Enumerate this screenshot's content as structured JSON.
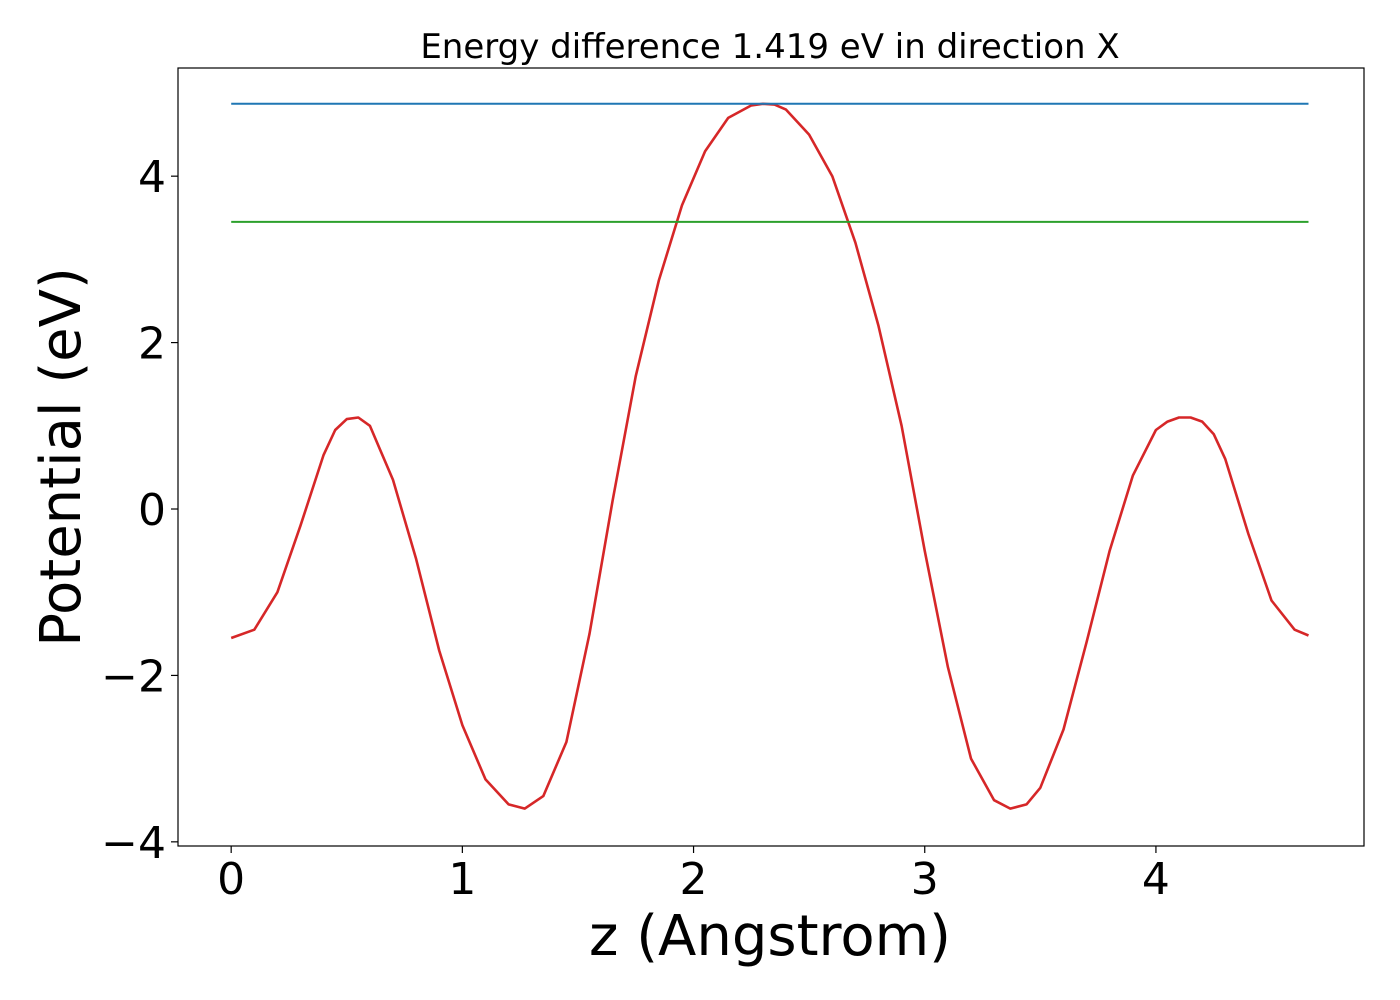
{
  "chart_data": {
    "type": "line",
    "title": "Energy difference 1.419 eV in direction X",
    "xlabel": "z (Angstrom)",
    "ylabel": "Potential (eV)",
    "xlim": [
      -0.23,
      4.9
    ],
    "ylim": [
      -4.05,
      5.3
    ],
    "grid": false,
    "legend": "none",
    "xticks": [
      {
        "value": 0,
        "label": "0"
      },
      {
        "value": 1,
        "label": "1"
      },
      {
        "value": 2,
        "label": "2"
      },
      {
        "value": 3,
        "label": "3"
      },
      {
        "value": 4,
        "label": "4"
      }
    ],
    "yticks": [
      {
        "value": -4,
        "label": "−4"
      },
      {
        "value": -2,
        "label": "−2"
      },
      {
        "value": 0,
        "label": "0"
      },
      {
        "value": 2,
        "label": "2"
      },
      {
        "value": 4,
        "label": "4"
      }
    ],
    "series": [
      {
        "color": "#d62728",
        "x": [
          0,
          0.1,
          0.2,
          0.3,
          0.4,
          0.45,
          0.5,
          0.55,
          0.6,
          0.7,
          0.8,
          0.9,
          1.0,
          1.1,
          1.2,
          1.27,
          1.35,
          1.45,
          1.55,
          1.65,
          1.75,
          1.85,
          1.95,
          2.05,
          2.15,
          2.25,
          2.3,
          2.35,
          2.4,
          2.5,
          2.6,
          2.7,
          2.8,
          2.9,
          3.0,
          3.1,
          3.2,
          3.3,
          3.37,
          3.44,
          3.5,
          3.6,
          3.7,
          3.8,
          3.9,
          4.0,
          4.05,
          4.1,
          4.15,
          4.2,
          4.25,
          4.3,
          4.4,
          4.5,
          4.6,
          4.66
        ],
        "y": [
          -1.55,
          -1.45,
          -1.0,
          -0.2,
          0.65,
          0.95,
          1.08,
          1.1,
          1.0,
          0.35,
          -0.6,
          -1.7,
          -2.6,
          -3.25,
          -3.55,
          -3.6,
          -3.45,
          -2.8,
          -1.5,
          0.1,
          1.6,
          2.75,
          3.65,
          4.3,
          4.7,
          4.85,
          4.87,
          4.86,
          4.8,
          4.5,
          4.0,
          3.2,
          2.2,
          1.0,
          -0.5,
          -1.9,
          -3.0,
          -3.5,
          -3.6,
          -3.55,
          -3.35,
          -2.65,
          -1.6,
          -0.5,
          0.4,
          0.95,
          1.05,
          1.1,
          1.1,
          1.05,
          0.9,
          0.6,
          -0.3,
          -1.1,
          -1.45,
          -1.52
        ]
      },
      {
        "color": "#1f77b4",
        "x": [
          0,
          4.66
        ],
        "y": [
          4.87,
          4.87
        ]
      },
      {
        "color": "#2ca02c",
        "x": [
          0,
          4.66
        ],
        "y": [
          3.45,
          3.45
        ]
      }
    ]
  }
}
